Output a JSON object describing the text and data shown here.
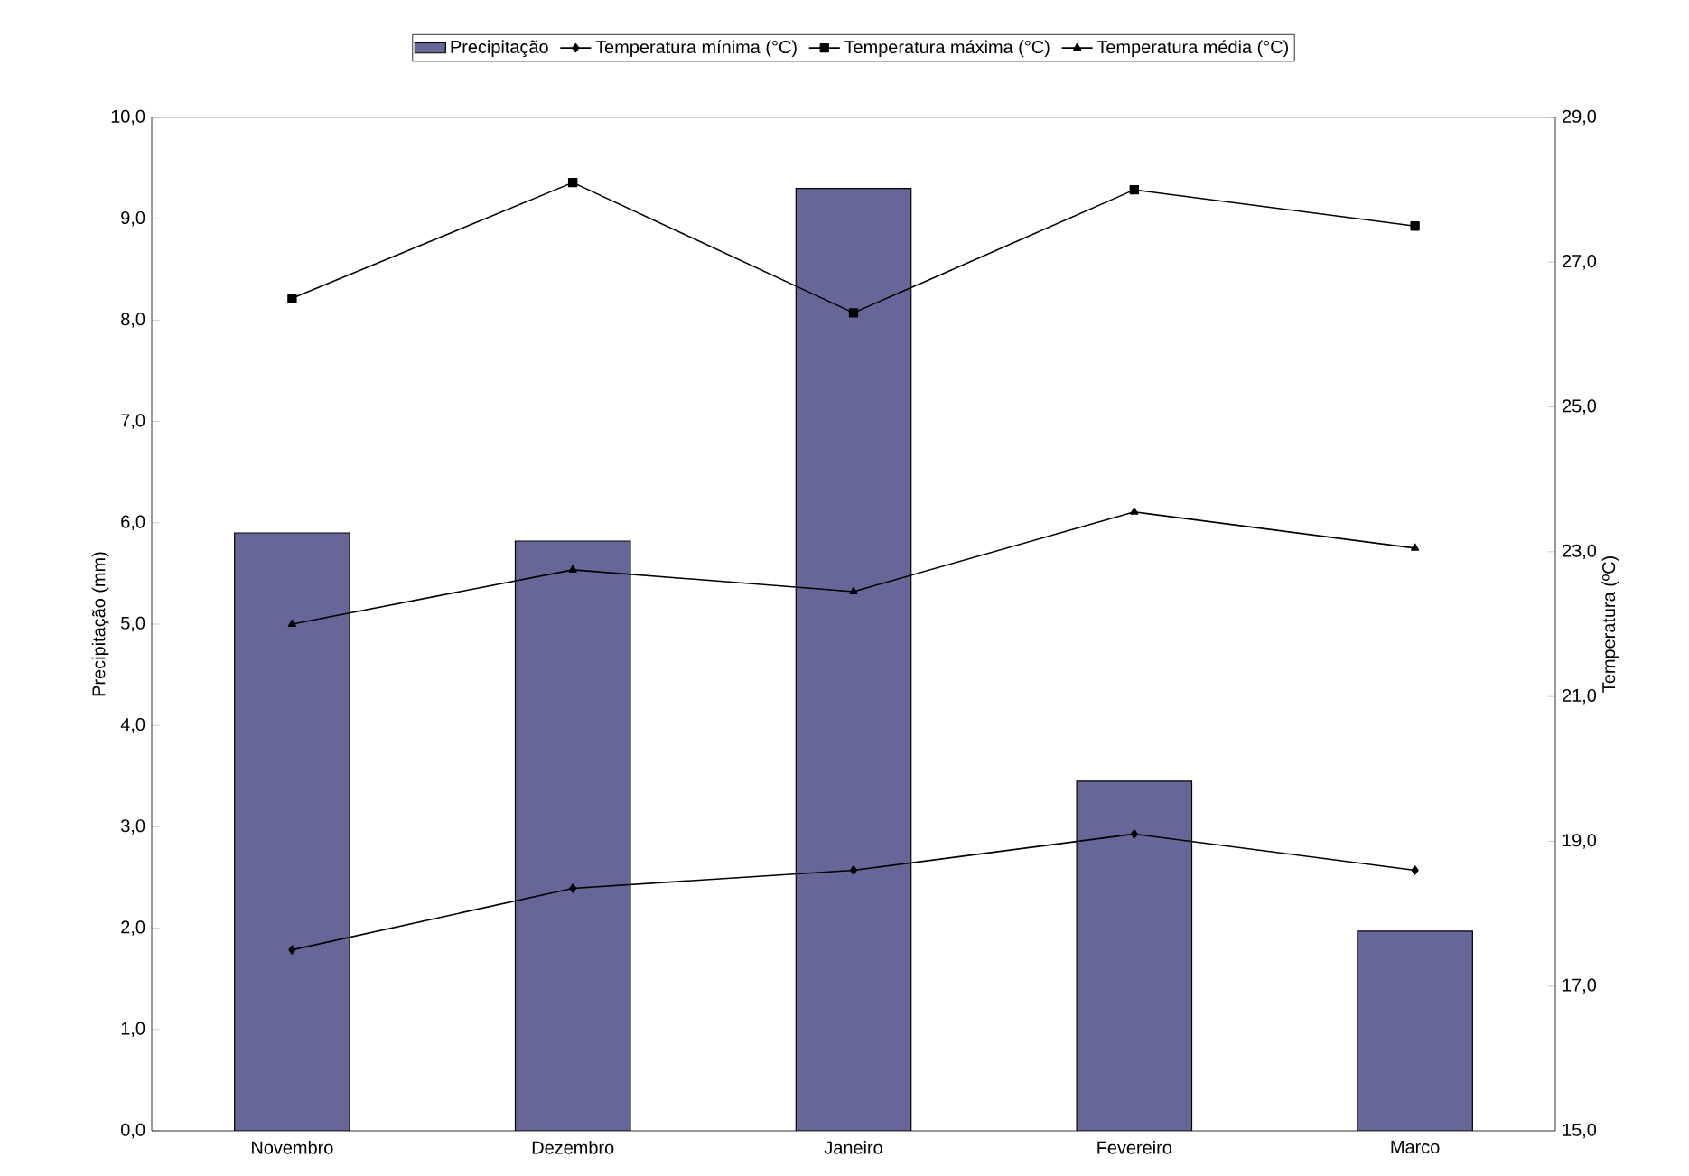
{
  "chart_data": {
    "type": "bar",
    "xlabel": null,
    "ylabel": "Precipitação (mm)",
    "y2label": "Temperatura (ºC)",
    "categories": [
      "Novembro",
      "Dezembro",
      "Janeiro",
      "Fevereiro",
      "Marco"
    ],
    "series": [
      {
        "name": "Precipitação",
        "color": "#666699",
        "values": [
          5.9,
          5.82,
          9.3,
          3.45,
          1.97
        ]
      },
      {
        "name": "Temperatura mínima  (°C)",
        "type": "line",
        "axis": "y2",
        "color": "#000000",
        "marker": "diamond",
        "values": [
          17.5,
          18.35,
          18.6,
          19.1,
          18.6
        ]
      },
      {
        "name": "Temperatura máxima  (°C)",
        "type": "line",
        "axis": "y2",
        "color": "#000000",
        "marker": "square",
        "values": [
          26.5,
          28.1,
          26.3,
          28.0,
          27.5
        ]
      },
      {
        "name": "Temperatura média (°C)",
        "type": "line",
        "axis": "y2",
        "color": "#000000",
        "marker": "triangle",
        "values": [
          22.0,
          22.75,
          22.45,
          23.55,
          23.05
        ]
      }
    ],
    "ylim": [
      0,
      10
    ],
    "yticks": [
      {
        "value": 0,
        "label": "0,0"
      },
      {
        "value": 1,
        "label": "1,0"
      },
      {
        "value": 2,
        "label": "2,0"
      },
      {
        "value": 3,
        "label": "3,0"
      },
      {
        "value": 4,
        "label": "4,0"
      },
      {
        "value": 5,
        "label": "5,0"
      },
      {
        "value": 6,
        "label": "6,0"
      },
      {
        "value": 7,
        "label": "7,0"
      },
      {
        "value": 8,
        "label": "8,0"
      },
      {
        "value": 9,
        "label": "9,0"
      },
      {
        "value": 10,
        "label": "10,0"
      }
    ],
    "y2lim": [
      15,
      29
    ],
    "y2ticks": [
      {
        "value": 15,
        "label": "15,0"
      },
      {
        "value": 17,
        "label": "17,0"
      },
      {
        "value": 19,
        "label": "19,0"
      },
      {
        "value": 21,
        "label": "21,0"
      },
      {
        "value": 23,
        "label": "23,0"
      },
      {
        "value": 25,
        "label": "25,0"
      },
      {
        "value": 27,
        "label": "27,0"
      },
      {
        "value": 29,
        "label": "29,0"
      }
    ],
    "legend": "top",
    "line_style": "solid"
  }
}
